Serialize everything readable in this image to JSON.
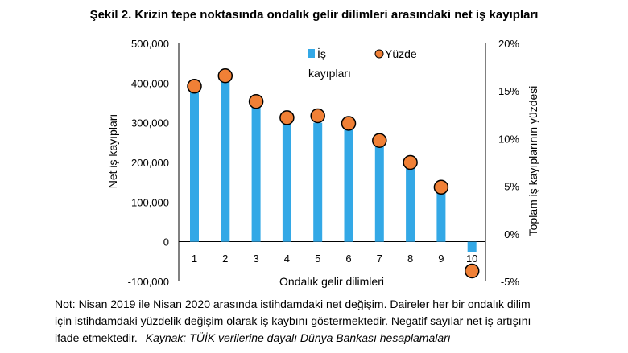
{
  "title": "Şekil 2. Krizin tepe noktasında ondalık gelir dilimleri arasındaki net iş kayıpları",
  "note": {
    "line1": "Not: Nisan 2019 ile Nisan 2020 arasında istihdamdaki net değişim. Daireler her bir ondalık dilim",
    "line2": "için istihdamdaki yüzdelik değişim olarak iş kaybını göstermektedir. Negatif sayılar net iş artışını",
    "line3": "ifade etmektedir.",
    "source": "Kaynak: TÜİK verilerine dayalı Dünya Bankası hesaplamaları"
  },
  "chart_data": {
    "type": "bar",
    "categories": [
      "1",
      "2",
      "3",
      "4",
      "5",
      "6",
      "7",
      "8",
      "9",
      "10"
    ],
    "series": [
      {
        "name": "İş kayıpları",
        "kind": "bar",
        "axis": "left",
        "color": "#33a8e6",
        "values": [
          385000,
          408000,
          342000,
          305000,
          300000,
          292000,
          250000,
          200000,
          135000,
          -25000
        ]
      },
      {
        "name": "Yüzde",
        "kind": "scatter",
        "axis": "right",
        "color": "#f08036",
        "values": [
          15.5,
          16.6,
          13.9,
          12.2,
          12.4,
          11.6,
          9.8,
          7.5,
          4.9,
          -3.9
        ]
      }
    ],
    "xlabel": "Ondalık gelir dilimleri",
    "ylabel": "Net iş kayıpları",
    "ylabel_right": "Toplam iş kayıplarının yüzdesi",
    "ylim": [
      -100000,
      500000
    ],
    "yticks": [
      "-100,000",
      "0",
      "100,000",
      "200,000",
      "300,000",
      "400,000",
      "500,000"
    ],
    "ylim_right": [
      -5,
      20
    ],
    "yticks_right": [
      "-5%",
      "0%",
      "5%",
      "10%",
      "15%",
      "20%"
    ],
    "legend_position": "top",
    "legend_labels": {
      "bar_line1": "İş",
      "bar_line2": "kayıpları",
      "scatter": "Yüzde"
    },
    "grid": false
  }
}
